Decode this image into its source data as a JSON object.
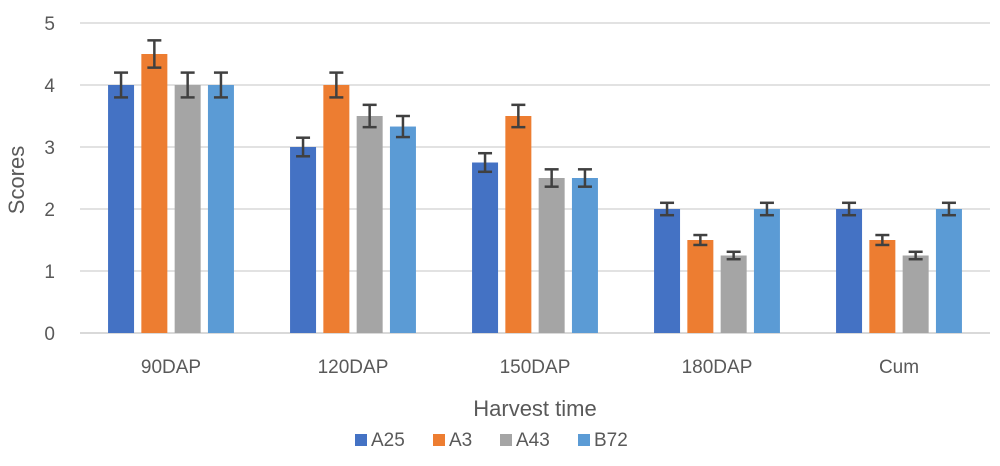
{
  "chart_data": {
    "type": "bar",
    "title": "",
    "xlabel": "Harvest time",
    "ylabel": "Scores",
    "ylim": [
      0,
      5
    ],
    "yticks": [
      "0",
      "1",
      "2",
      "3",
      "4",
      "5"
    ],
    "grid": true,
    "legend_position": "bottom",
    "categories": [
      "90DAP",
      "120DAP",
      "150DAP",
      "180DAP",
      "Cum"
    ],
    "series": [
      {
        "name": "A25",
        "color": "#4472C4",
        "values": [
          4.0,
          3.0,
          2.75,
          2.0,
          2.0
        ],
        "errors": [
          0.2,
          0.15,
          0.15,
          0.1,
          0.1
        ]
      },
      {
        "name": "A3",
        "color": "#ED7D31",
        "values": [
          4.5,
          4.0,
          3.5,
          1.5,
          1.5
        ],
        "errors": [
          0.22,
          0.2,
          0.18,
          0.08,
          0.08
        ]
      },
      {
        "name": "A43",
        "color": "#A5A5A5",
        "values": [
          4.0,
          3.5,
          2.5,
          1.25,
          1.25
        ],
        "errors": [
          0.2,
          0.18,
          0.14,
          0.06,
          0.06
        ]
      },
      {
        "name": "B72",
        "color": "#5B9BD5",
        "values": [
          4.0,
          3.33,
          2.5,
          2.0,
          2.0
        ],
        "errors": [
          0.2,
          0.17,
          0.14,
          0.1,
          0.1
        ]
      }
    ]
  }
}
